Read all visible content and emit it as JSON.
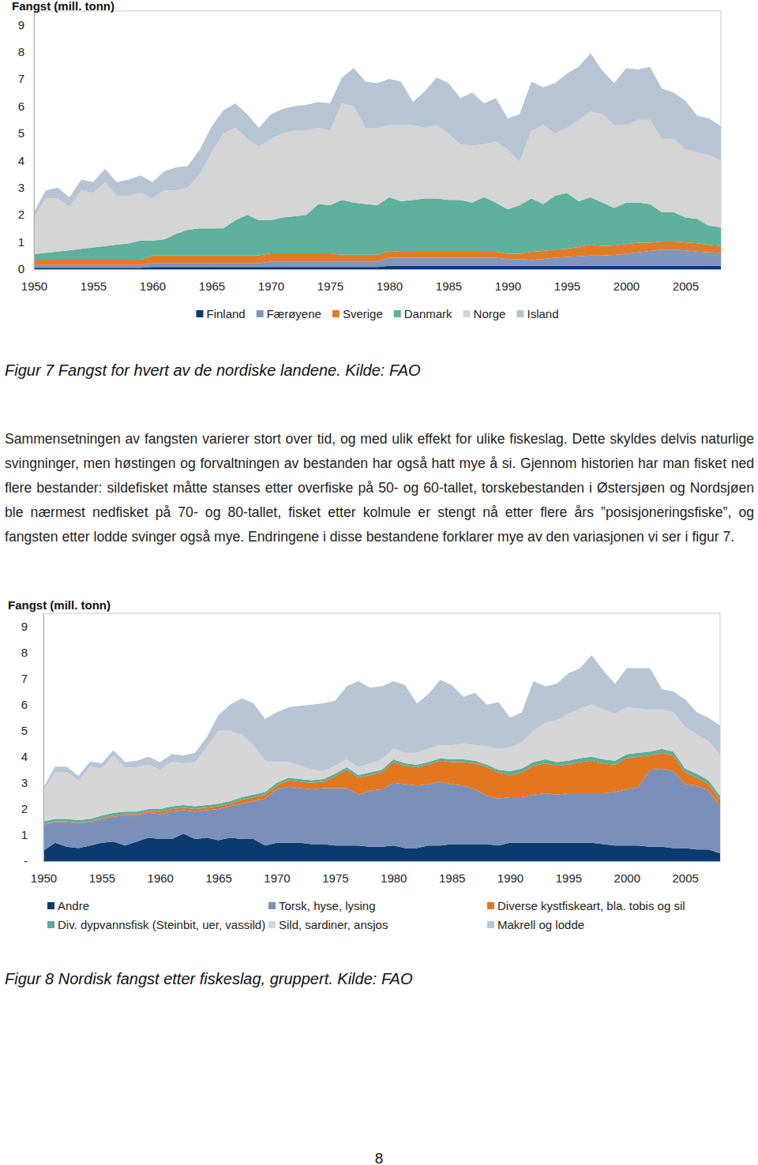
{
  "chart_data": [
    {
      "type": "area",
      "stacked": true,
      "legend": "bottom",
      "y_label": "Fangst (mill. tonn)",
      "caption": "Figur 7 Fangst for hvert av de nordiske landene. Kilde: FAO",
      "x": [
        1950,
        1951,
        1952,
        1953,
        1954,
        1955,
        1956,
        1957,
        1958,
        1959,
        1960,
        1961,
        1962,
        1963,
        1964,
        1965,
        1966,
        1967,
        1968,
        1969,
        1970,
        1971,
        1972,
        1973,
        1974,
        1975,
        1976,
        1977,
        1978,
        1979,
        1980,
        1981,
        1982,
        1983,
        1984,
        1985,
        1986,
        1987,
        1988,
        1989,
        1990,
        1991,
        1992,
        1993,
        1994,
        1995,
        1996,
        1997,
        1998,
        1999,
        2000,
        2001,
        2002,
        2003,
        2004,
        2005,
        2006,
        2007,
        2008
      ],
      "xlim": [
        1950,
        2008
      ],
      "xticks": [
        1950,
        1955,
        1960,
        1965,
        1970,
        1975,
        1980,
        1985,
        1990,
        1995,
        2000,
        2005
      ],
      "ylim": [
        0,
        9.5
      ],
      "yticks": [
        0,
        1,
        2,
        3,
        4,
        5,
        6,
        7,
        8,
        9
      ],
      "series": [
        {
          "name": "Finland",
          "color": "#0b3a6e",
          "values": [
            0.05,
            0.05,
            0.05,
            0.05,
            0.05,
            0.05,
            0.05,
            0.05,
            0.05,
            0.05,
            0.08,
            0.08,
            0.08,
            0.08,
            0.08,
            0.08,
            0.08,
            0.08,
            0.08,
            0.08,
            0.08,
            0.08,
            0.08,
            0.08,
            0.08,
            0.08,
            0.08,
            0.08,
            0.08,
            0.08,
            0.12,
            0.12,
            0.12,
            0.12,
            0.12,
            0.12,
            0.12,
            0.12,
            0.12,
            0.12,
            0.12,
            0.12,
            0.12,
            0.12,
            0.12,
            0.12,
            0.12,
            0.12,
            0.12,
            0.12,
            0.12,
            0.12,
            0.12,
            0.12,
            0.12,
            0.12,
            0.12,
            0.12,
            0.12
          ]
        },
        {
          "name": "Færøyene",
          "color": "#7f96bf",
          "values": [
            0.1,
            0.1,
            0.1,
            0.1,
            0.1,
            0.1,
            0.1,
            0.1,
            0.1,
            0.1,
            0.13,
            0.13,
            0.13,
            0.13,
            0.13,
            0.13,
            0.13,
            0.13,
            0.13,
            0.13,
            0.2,
            0.2,
            0.2,
            0.2,
            0.2,
            0.2,
            0.2,
            0.2,
            0.2,
            0.2,
            0.3,
            0.3,
            0.3,
            0.3,
            0.3,
            0.3,
            0.3,
            0.3,
            0.3,
            0.3,
            0.25,
            0.25,
            0.22,
            0.25,
            0.3,
            0.33,
            0.35,
            0.38,
            0.38,
            0.4,
            0.45,
            0.5,
            0.55,
            0.6,
            0.6,
            0.57,
            0.53,
            0.5,
            0.48
          ]
        },
        {
          "name": "Sverige",
          "color": "#e27b26",
          "values": [
            0.2,
            0.2,
            0.2,
            0.2,
            0.2,
            0.2,
            0.2,
            0.2,
            0.2,
            0.2,
            0.3,
            0.3,
            0.3,
            0.3,
            0.3,
            0.3,
            0.3,
            0.3,
            0.3,
            0.3,
            0.3,
            0.3,
            0.3,
            0.3,
            0.3,
            0.3,
            0.25,
            0.25,
            0.25,
            0.25,
            0.25,
            0.22,
            0.22,
            0.22,
            0.22,
            0.22,
            0.22,
            0.22,
            0.22,
            0.22,
            0.2,
            0.2,
            0.3,
            0.3,
            0.3,
            0.3,
            0.35,
            0.4,
            0.35,
            0.35,
            0.35,
            0.35,
            0.3,
            0.3,
            0.3,
            0.3,
            0.3,
            0.27,
            0.25
          ]
        },
        {
          "name": "Danmark",
          "color": "#5db09c",
          "values": [
            0.2,
            0.25,
            0.3,
            0.35,
            0.4,
            0.45,
            0.5,
            0.55,
            0.6,
            0.7,
            0.54,
            0.59,
            0.79,
            0.94,
            0.99,
            0.99,
            0.99,
            1.29,
            1.49,
            1.29,
            1.22,
            1.32,
            1.37,
            1.42,
            1.82,
            1.77,
            2.02,
            1.92,
            1.87,
            1.82,
            1.98,
            1.86,
            1.91,
            1.96,
            1.96,
            1.91,
            1.91,
            1.81,
            2.01,
            1.81,
            1.63,
            1.78,
            1.96,
            1.73,
            1.98,
            2.05,
            1.68,
            1.75,
            1.6,
            1.38,
            1.53,
            1.48,
            1.43,
            1.08,
            1.08,
            0.91,
            0.9,
            0.71,
            0.7
          ]
        },
        {
          "name": "Norge",
          "color": "#d4d4d4",
          "values": [
            1.35,
            2.0,
            1.95,
            1.6,
            2.15,
            2.0,
            2.35,
            1.8,
            1.75,
            1.75,
            1.55,
            1.8,
            1.6,
            1.55,
            2.0,
            2.8,
            3.5,
            3.4,
            2.8,
            2.7,
            3.0,
            3.1,
            3.15,
            3.1,
            2.8,
            2.75,
            3.55,
            3.55,
            2.8,
            2.85,
            2.65,
            2.8,
            2.75,
            2.6,
            2.7,
            2.45,
            2.05,
            2.1,
            1.95,
            2.25,
            2.2,
            1.6,
            2.5,
            2.9,
            2.3,
            2.4,
            3.0,
            3.15,
            3.25,
            3.05,
            2.85,
            3.05,
            3.1,
            2.7,
            2.7,
            2.5,
            2.45,
            2.6,
            2.45
          ]
        },
        {
          "name": "Island",
          "color": "#b7c4d4",
          "values": [
            0.2,
            0.3,
            0.4,
            0.35,
            0.4,
            0.4,
            0.5,
            0.5,
            0.6,
            0.65,
            0.6,
            0.7,
            0.85,
            0.8,
            0.9,
            0.95,
            0.85,
            0.9,
            0.9,
            0.7,
            0.9,
            0.9,
            0.9,
            0.95,
            0.95,
            1.0,
            0.95,
            1.4,
            1.7,
            1.65,
            1.7,
            1.6,
            0.85,
            1.35,
            1.75,
            1.85,
            1.7,
            1.95,
            1.5,
            1.6,
            1.15,
            1.75,
            1.8,
            1.4,
            1.85,
            2.0,
            1.95,
            2.15,
            1.6,
            1.55,
            2.1,
            1.85,
            1.95,
            1.85,
            1.7,
            1.8,
            1.35,
            1.35,
            1.25
          ]
        }
      ]
    },
    {
      "type": "area",
      "stacked": true,
      "legend": "bottom",
      "y_label": "Fangst (mill. tonn)",
      "caption": "Figur 8 Nordisk fangst etter fiskeslag, gruppert. Kilde: FAO",
      "x": [
        1950,
        1951,
        1952,
        1953,
        1954,
        1955,
        1956,
        1957,
        1958,
        1959,
        1960,
        1961,
        1962,
        1963,
        1964,
        1965,
        1966,
        1967,
        1968,
        1969,
        1970,
        1971,
        1972,
        1973,
        1974,
        1975,
        1976,
        1977,
        1978,
        1979,
        1980,
        1981,
        1982,
        1983,
        1984,
        1985,
        1986,
        1987,
        1988,
        1989,
        1990,
        1991,
        1992,
        1993,
        1994,
        1995,
        1996,
        1997,
        1998,
        1999,
        2000,
        2001,
        2002,
        2003,
        2004,
        2005,
        2006,
        2007,
        2008
      ],
      "xlim": [
        1950,
        2008
      ],
      "xticks": [
        1950,
        1955,
        1960,
        1965,
        1970,
        1975,
        1980,
        1985,
        1990,
        1995,
        2000,
        2005
      ],
      "ylim": [
        0,
        9.5
      ],
      "yticks": [
        {
          "value": 0,
          "label": "-"
        },
        1,
        2,
        3,
        4,
        5,
        6,
        7,
        8,
        9
      ],
      "series": [
        {
          "name": "Andre",
          "color": "#0b3a6e",
          "values": [
            0.4,
            0.7,
            0.55,
            0.5,
            0.6,
            0.7,
            0.75,
            0.6,
            0.75,
            0.9,
            0.85,
            0.85,
            1.05,
            0.85,
            0.9,
            0.8,
            0.9,
            0.85,
            0.85,
            0.6,
            0.7,
            0.7,
            0.7,
            0.65,
            0.65,
            0.6,
            0.6,
            0.6,
            0.55,
            0.55,
            0.6,
            0.5,
            0.5,
            0.6,
            0.6,
            0.65,
            0.65,
            0.65,
            0.65,
            0.6,
            0.7,
            0.7,
            0.7,
            0.7,
            0.7,
            0.7,
            0.7,
            0.7,
            0.65,
            0.6,
            0.6,
            0.6,
            0.55,
            0.55,
            0.5,
            0.5,
            0.45,
            0.45,
            0.3
          ]
        },
        {
          "name": "Torsk, hyse, lysing",
          "color": "#7a90ba",
          "values": [
            1.0,
            0.8,
            0.95,
            0.95,
            0.9,
            0.9,
            0.95,
            1.15,
            1.0,
            0.95,
            0.95,
            1.05,
            0.9,
            1.05,
            1.05,
            1.2,
            1.2,
            1.35,
            1.45,
            1.8,
            2.05,
            2.15,
            2.1,
            2.1,
            2.15,
            2.2,
            2.2,
            1.95,
            2.15,
            2.2,
            2.4,
            2.45,
            2.4,
            2.35,
            2.45,
            2.3,
            2.25,
            2.1,
            1.85,
            1.8,
            1.75,
            1.75,
            1.85,
            1.9,
            1.85,
            1.9,
            1.9,
            1.9,
            1.95,
            2.05,
            2.15,
            2.25,
            2.95,
            3.0,
            2.95,
            2.45,
            2.45,
            2.25,
            1.8
          ]
        },
        {
          "name": "Diverse kystfiskeart, bla. tobis og sil",
          "color": "#e2771f",
          "values": [
            0.02,
            0.02,
            0.02,
            0.02,
            0.02,
            0.05,
            0.05,
            0.05,
            0.05,
            0.05,
            0.1,
            0.1,
            0.1,
            0.1,
            0.1,
            0.1,
            0.1,
            0.15,
            0.15,
            0.15,
            0.15,
            0.25,
            0.25,
            0.25,
            0.25,
            0.45,
            0.7,
            0.65,
            0.6,
            0.65,
            0.8,
            0.7,
            0.7,
            0.75,
            0.8,
            0.85,
            0.9,
            1.0,
            1.1,
            1.0,
            0.85,
            0.95,
            1.1,
            1.15,
            1.1,
            1.1,
            1.2,
            1.25,
            1.15,
            1.05,
            1.2,
            1.15,
            0.55,
            0.6,
            0.6,
            0.45,
            0.3,
            0.25,
            0.25
          ]
        },
        {
          "name": "Div. dypvannsfisk (Steinbit, uer, vassild)",
          "color": "#5aae99",
          "values": [
            0.1,
            0.1,
            0.1,
            0.1,
            0.1,
            0.1,
            0.1,
            0.1,
            0.1,
            0.1,
            0.1,
            0.1,
            0.1,
            0.1,
            0.1,
            0.1,
            0.1,
            0.1,
            0.1,
            0.1,
            0.1,
            0.1,
            0.1,
            0.1,
            0.1,
            0.1,
            0.1,
            0.1,
            0.1,
            0.1,
            0.1,
            0.1,
            0.1,
            0.1,
            0.1,
            0.1,
            0.1,
            0.1,
            0.1,
            0.1,
            0.15,
            0.15,
            0.15,
            0.15,
            0.15,
            0.15,
            0.15,
            0.15,
            0.15,
            0.15,
            0.15,
            0.15,
            0.15,
            0.15,
            0.15,
            0.15,
            0.15,
            0.15,
            0.15
          ]
        },
        {
          "name": "Sild, sardiner, ansjos",
          "color": "#d6d6d6",
          "values": [
            1.2,
            1.8,
            1.8,
            1.5,
            2.0,
            1.8,
            2.2,
            1.7,
            1.7,
            1.7,
            1.5,
            1.7,
            1.6,
            1.7,
            2.2,
            2.8,
            2.7,
            2.4,
            1.9,
            1.2,
            0.8,
            0.6,
            0.5,
            0.4,
            0.3,
            0.3,
            0.3,
            0.3,
            0.35,
            0.4,
            0.4,
            0.4,
            0.45,
            0.5,
            0.5,
            0.55,
            0.6,
            0.6,
            0.7,
            0.8,
            0.9,
            1.0,
            1.2,
            1.4,
            1.6,
            1.8,
            1.9,
            2.0,
            1.9,
            1.8,
            1.8,
            1.7,
            1.6,
            1.5,
            1.5,
            1.6,
            1.5,
            1.5,
            1.6
          ]
        },
        {
          "name": "Makrell og lodde",
          "color": "#b8c5d5",
          "values": [
            0.1,
            0.2,
            0.2,
            0.2,
            0.2,
            0.2,
            0.2,
            0.2,
            0.25,
            0.3,
            0.3,
            0.3,
            0.3,
            0.35,
            0.4,
            0.6,
            1.0,
            1.4,
            1.6,
            1.6,
            1.9,
            2.1,
            2.3,
            2.5,
            2.6,
            2.5,
            2.8,
            3.3,
            2.9,
            2.8,
            2.6,
            2.6,
            1.9,
            2.1,
            2.5,
            2.3,
            1.8,
            2.0,
            1.6,
            1.8,
            1.15,
            1.15,
            1.9,
            1.4,
            1.4,
            1.55,
            1.55,
            1.9,
            1.5,
            1.15,
            1.5,
            1.55,
            1.6,
            0.8,
            0.8,
            1.05,
            0.85,
            0.9,
            1.1
          ]
        }
      ]
    }
  ],
  "document": {
    "paragraph": "Sammensetningen av fangsten varierer stort over tid, og med ulik effekt for ulike fiskeslag. Dette skyldes delvis naturlige svingninger, men høstingen og forvaltningen av bestanden har også hatt mye å si. Gjennom historien har man fisket ned flere bestander: sildefisket måtte stanses etter overfiske på 50- og 60-tallet, torskebestanden i Østersjøen og Nordsjøen ble nærmest nedfisket på 70- og 80-tallet, fisket etter kolmule er stengt nå etter flere års ”posisjoneringsfiske”, og fangsten etter lodde svinger også mye. Endringene i disse bestandene forklarer mye av den variasjonen vi ser i figur 7.",
    "page_number": "8"
  }
}
